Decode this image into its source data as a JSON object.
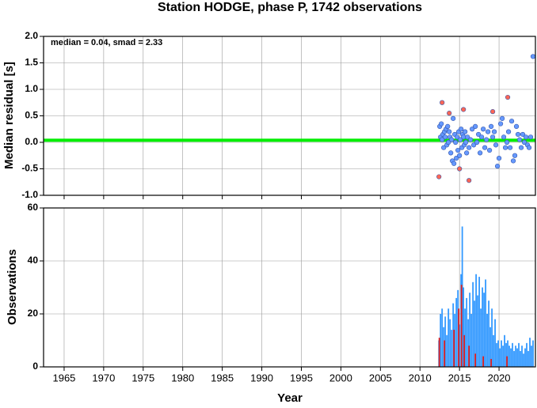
{
  "chart_data": [
    {
      "type": "scatter",
      "title": "Station HODGE, phase P, 1742 observations",
      "ylabel": "Median residual [s]",
      "annotation": "median = 0.04, smad = 2.33",
      "median": 0.04,
      "median_color": "#00ee00",
      "xlim": [
        1962.4,
        2024.6
      ],
      "ylim": [
        -1,
        2
      ],
      "grid": true,
      "yticks": [
        {
          "value": 2,
          "label": "2.0"
        },
        1.5,
        {
          "value": 1,
          "label": "1.0"
        },
        0.5,
        {
          "value": 0,
          "label": "0.0"
        },
        -0.5,
        {
          "value": -1,
          "label": "-1.0"
        }
      ],
      "series": [
        {
          "color": "#6699ff",
          "x": [
            2012.5,
            2012.6,
            2012.7,
            2012.8,
            2012.9,
            2013.0,
            2013.1,
            2013.2,
            2013.3,
            2013.4,
            2013.5,
            2013.6,
            2013.7,
            2013.8,
            2013.9,
            2014.0,
            2014.1,
            2014.2,
            2014.3,
            2014.4,
            2014.5,
            2014.6,
            2014.7,
            2014.8,
            2014.9,
            2015.0,
            2015.1,
            2015.2,
            2015.3,
            2015.4,
            2015.5,
            2015.6,
            2015.7,
            2015.8,
            2015.9,
            2016.0,
            2016.2,
            2016.4,
            2016.6,
            2016.8,
            2017.0,
            2017.2,
            2017.4,
            2017.6,
            2017.8,
            2018.0,
            2018.2,
            2018.4,
            2018.6,
            2018.8,
            2019.0,
            2019.2,
            2019.4,
            2019.6,
            2019.8,
            2020.0,
            2020.2,
            2020.4,
            2020.6,
            2020.8,
            2021.0,
            2021.2,
            2021.4,
            2021.6,
            2021.8,
            2022.0,
            2022.2,
            2022.4,
            2022.6,
            2022.8,
            2023.0,
            2023.2,
            2023.4,
            2023.6,
            2023.8,
            2024.0,
            2024.3
          ],
          "values": [
            0.3,
            0.1,
            0.35,
            0.05,
            0.15,
            -0.1,
            0.2,
            0.1,
            0.25,
            -0.05,
            0.3,
            0.0,
            0.2,
            0.1,
            -0.2,
            0.05,
            -0.35,
            0.45,
            -0.4,
            0.15,
            0.0,
            -0.3,
            0.1,
            -0.15,
            0.2,
            -0.25,
            0.05,
            0.25,
            -0.1,
            0.15,
            0.1,
            -0.05,
            0.2,
            0.0,
            -0.2,
            0.1,
            -0.1,
            0.05,
            0.25,
            -0.05,
            0.3,
            0.0,
            0.15,
            -0.2,
            0.1,
            0.25,
            -0.1,
            0.05,
            0.2,
            -0.15,
            0.3,
            0.1,
            0.2,
            -0.05,
            -0.45,
            -0.3,
            0.35,
            0.45,
            0.1,
            -0.1,
            0.0,
            0.2,
            -0.1,
            0.4,
            -0.35,
            -0.25,
            0.3,
            0.15,
            0.05,
            -0.1,
            0.15,
            0.0,
            0.1,
            -0.05,
            -0.1,
            0.1,
            1.62
          ]
        },
        {
          "color": "#ff6655",
          "x": [
            2012.4,
            2012.8,
            2013.7,
            2015.0,
            2015.5,
            2016.2,
            2019.2,
            2021.1
          ],
          "values": [
            -0.65,
            0.75,
            0.55,
            -0.5,
            0.62,
            -0.72,
            0.58,
            0.85
          ]
        }
      ]
    },
    {
      "type": "bar",
      "xlabel": "Year",
      "ylabel": "Observations",
      "xlim": [
        1962.4,
        2024.6
      ],
      "ylim": [
        0,
        60
      ],
      "grid": true,
      "xticks": [
        1965,
        1970,
        1975,
        1980,
        1985,
        1990,
        1995,
        2000,
        2005,
        2010,
        2015,
        2020
      ],
      "yticks": [
        0,
        20,
        40,
        60
      ],
      "series": [
        {
          "color": "#3399ff",
          "x": [
            2012.4,
            2012.6,
            2012.8,
            2013.0,
            2013.2,
            2013.4,
            2013.6,
            2013.8,
            2014.0,
            2014.2,
            2014.4,
            2014.6,
            2014.8,
            2015.0,
            2015.2,
            2015.35,
            2015.5,
            2015.7,
            2015.9,
            2016.1,
            2016.3,
            2016.5,
            2016.7,
            2016.9,
            2017.1,
            2017.3,
            2017.5,
            2017.7,
            2017.9,
            2018.1,
            2018.3,
            2018.5,
            2018.7,
            2018.9,
            2019.1,
            2019.3,
            2019.5,
            2019.7,
            2019.9,
            2020.1,
            2020.3,
            2020.5,
            2020.7,
            2020.9,
            2021.1,
            2021.3,
            2021.5,
            2021.7,
            2021.9,
            2022.1,
            2022.3,
            2022.5,
            2022.7,
            2022.9,
            2023.1,
            2023.3,
            2023.5,
            2023.7,
            2023.9,
            2024.1,
            2024.3
          ],
          "values": [
            10,
            20,
            22,
            15,
            19,
            12,
            22,
            18,
            14,
            24,
            20,
            26,
            29,
            16,
            35,
            53,
            30,
            22,
            26,
            18,
            28,
            20,
            32,
            25,
            35,
            27,
            34,
            22,
            30,
            28,
            33,
            20,
            25,
            15,
            22,
            12,
            18,
            9,
            10,
            7,
            10,
            8,
            12,
            9,
            10,
            8,
            7,
            9,
            6,
            8,
            7,
            9,
            6,
            8,
            5,
            7,
            9,
            6,
            11,
            8,
            10
          ]
        },
        {
          "color": "#e02020",
          "x": [
            2012.45,
            2013.1,
            2014.3,
            2014.9,
            2015.25,
            2015.6,
            2016.2,
            2017.0,
            2018.0,
            2019.0,
            2021.0
          ],
          "values": [
            11,
            10,
            14,
            22,
            31,
            12,
            8,
            5,
            4,
            3,
            4
          ]
        }
      ]
    }
  ]
}
